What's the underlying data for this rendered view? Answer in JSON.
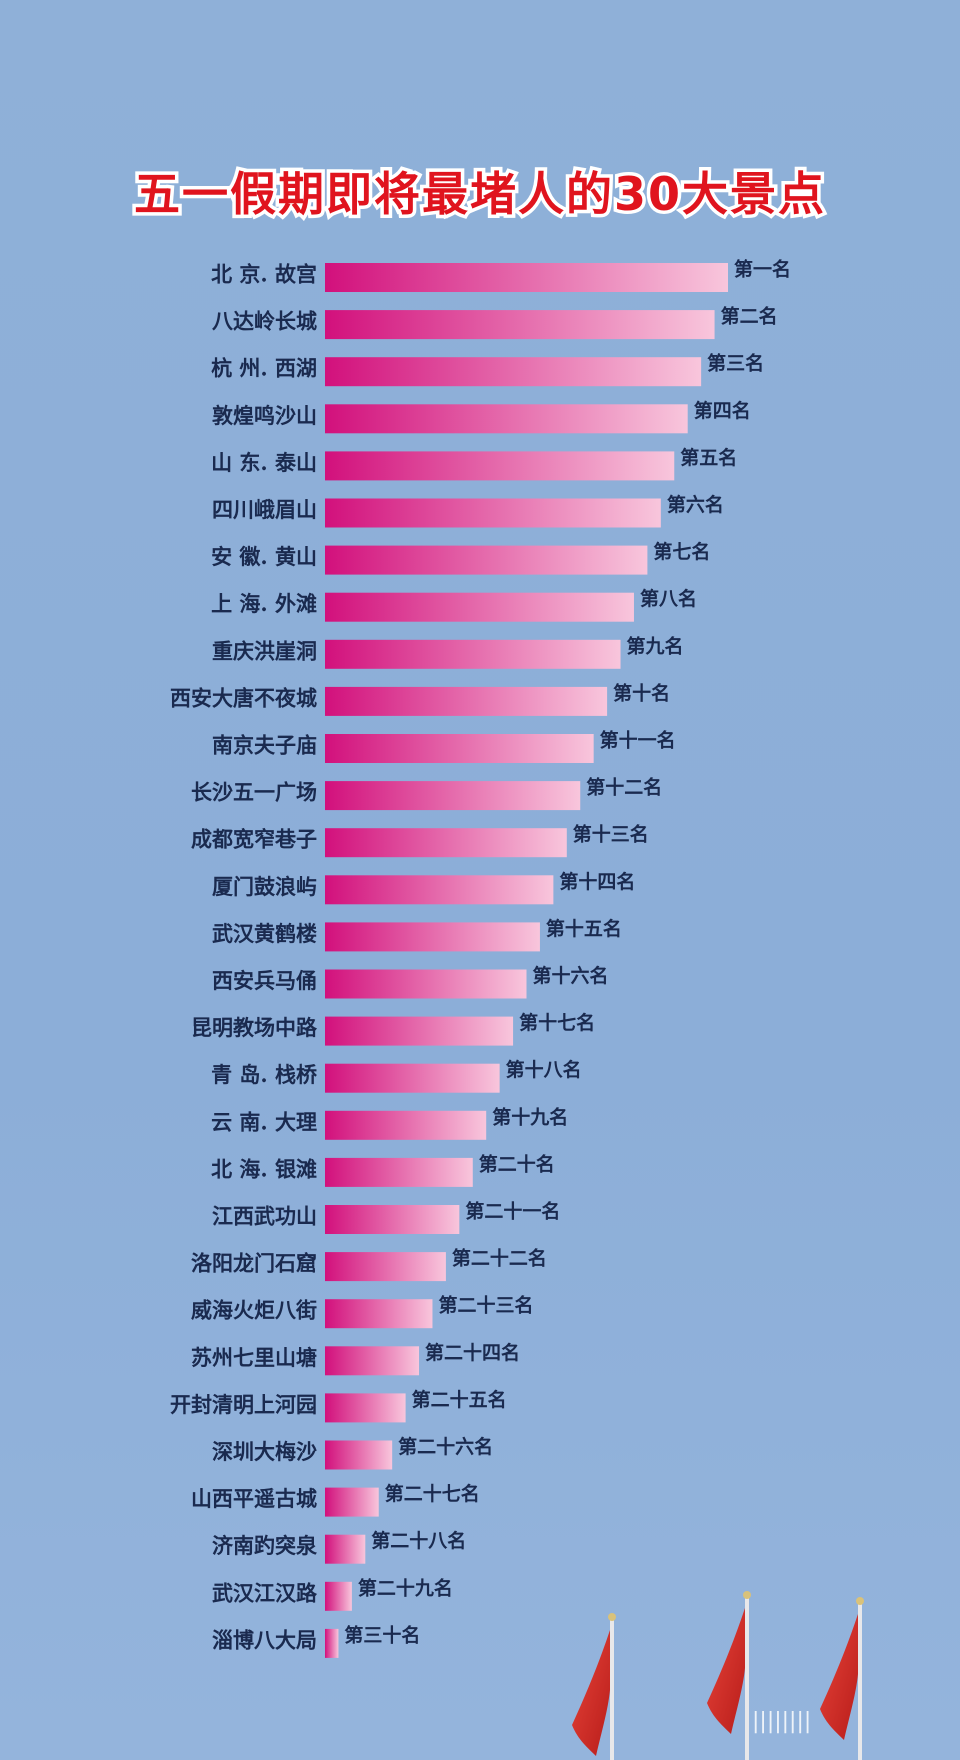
{
  "chart_data": {
    "type": "bar",
    "orientation": "horizontal",
    "title": "五一假期即将最堵人的30大景点",
    "categories": [
      "北 京. 故宫",
      "八达岭长城",
      "杭 州. 西湖",
      "敦煌鸣沙山",
      "山 东. 泰山",
      "四川峨眉山",
      "安 徽. 黄山",
      "上 海. 外滩",
      "重庆洪崖洞",
      "西安大唐不夜城",
      "南京夫子庙",
      "长沙五一广场",
      "成都宽窄巷子",
      "厦门鼓浪屿",
      "武汉黄鹤楼",
      "西安兵马俑",
      "昆明教场中路",
      "青 岛. 栈桥",
      "云 南. 大理",
      "北 海. 银滩",
      "江西武功山",
      "洛阳龙门石窟",
      "威海火炬八街",
      "苏州七里山塘",
      "开封清明上河园",
      "深圳大梅沙",
      "山西平遥古城",
      "济南趵突泉",
      "武汉江汉路",
      "淄博八大局"
    ],
    "rank_labels": [
      "第一名",
      "第二名",
      "第三名",
      "第四名",
      "第五名",
      "第六名",
      "第七名",
      "第八名",
      "第九名",
      "第十名",
      "第十一名",
      "第十二名",
      "第十三名",
      "第十四名",
      "第十五名",
      "第十六名",
      "第十七名",
      "第十八名",
      "第十九名",
      "第二十名",
      "第二十一名",
      "第二十二名",
      "第二十三名",
      "第二十四名",
      "第二十五名",
      "第二十六名",
      "第二十七名",
      "第二十八名",
      "第二十九名",
      "第三十名"
    ],
    "values": [
      30,
      29,
      28,
      27,
      26,
      25,
      24,
      23,
      22,
      21,
      20,
      19,
      18,
      17,
      16,
      15,
      14,
      13,
      12,
      11,
      10,
      9,
      8,
      7,
      6,
      5,
      4,
      3,
      2,
      1
    ],
    "grid": false,
    "legend": "none",
    "colors": {
      "bar_start": "#d2107c",
      "bar_end": "#f8c6dc",
      "label": "#1a2a4f",
      "title": "#e0141e",
      "background": "#8fb0d8",
      "flag": "#d42a25"
    }
  },
  "decorations": {
    "flags": [
      "flag-icon",
      "flag-icon",
      "flag-icon"
    ],
    "watermark": "||||||||"
  }
}
